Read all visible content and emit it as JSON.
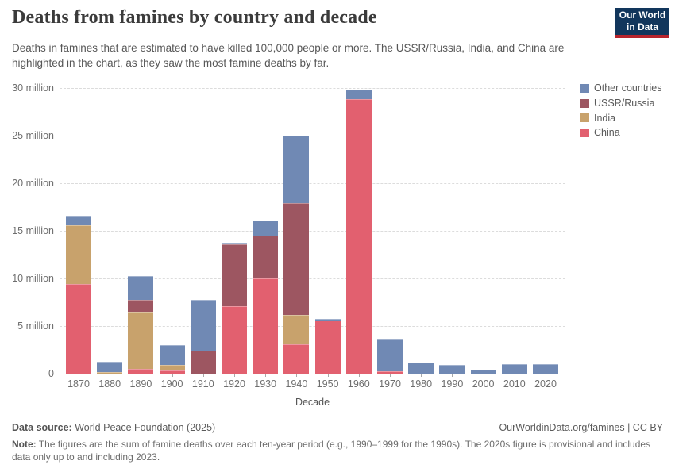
{
  "logo": {
    "line1": "Our World",
    "line2": "in Data",
    "bg_color": "#12365c",
    "stripe_color": "#b8242c"
  },
  "chart_data": {
    "type": "bar",
    "stacked": true,
    "title": "Deaths from famines by country and decade",
    "subtitle": "Deaths in famines that are estimated to have killed 100,000 people or more. The USSR/Russia, India, and China are highlighted in the chart, as they saw the most famine deaths by far.",
    "xlabel": "Decade",
    "ylabel": "",
    "values_unit": "millions of deaths",
    "ylim": [
      0,
      30
    ],
    "grid": "horizontal-dashed",
    "legend_position": "top-right",
    "categories": [
      "1870",
      "1880",
      "1890",
      "1900",
      "1910",
      "1920",
      "1930",
      "1940",
      "1950",
      "1960",
      "1970",
      "1980",
      "1990",
      "2000",
      "2010",
      "2020"
    ],
    "series": [
      {
        "name": "China",
        "color": "#e2606f",
        "values": [
          9.4,
          0,
          0.5,
          0.3,
          0,
          7.1,
          10.0,
          3.1,
          5.55,
          28.8,
          0.25,
          0,
          0,
          0,
          0,
          0
        ]
      },
      {
        "name": "India",
        "color": "#c8a26c",
        "values": [
          6.2,
          0.15,
          6.0,
          0.6,
          0,
          0,
          0,
          3.1,
          0,
          0,
          0,
          0,
          0,
          0,
          0,
          0
        ]
      },
      {
        "name": "USSR/Russia",
        "color": "#9d5661",
        "values": [
          0,
          0,
          1.25,
          0,
          2.45,
          6.5,
          4.5,
          11.7,
          0,
          0,
          0,
          0,
          0,
          0,
          0,
          0
        ]
      },
      {
        "name": "Other countries",
        "color": "#7089b4",
        "values": [
          1.0,
          1.1,
          2.5,
          2.1,
          5.3,
          0.15,
          1.6,
          7.1,
          0.2,
          1.0,
          3.4,
          1.2,
          0.9,
          0.4,
          1.0,
          1.0
        ]
      }
    ],
    "totals": [
      16.6,
      1.25,
      10.25,
      3.0,
      7.75,
      13.75,
      16.1,
      25.0,
      5.75,
      29.8,
      3.65,
      1.2,
      0.9,
      0.4,
      1.0,
      1.0
    ],
    "yticks": [
      {
        "value": 0,
        "label": "0"
      },
      {
        "value": 5,
        "label": "5 million"
      },
      {
        "value": 10,
        "label": "10 million"
      },
      {
        "value": 15,
        "label": "15 million"
      },
      {
        "value": 20,
        "label": "20 million"
      },
      {
        "value": 25,
        "label": "25 million"
      },
      {
        "value": 30,
        "label": "30 million"
      }
    ],
    "legend_items": [
      {
        "label": "Other countries",
        "color": "#7089b4"
      },
      {
        "label": "USSR/Russia",
        "color": "#9d5661"
      },
      {
        "label": "India",
        "color": "#c8a26c"
      },
      {
        "label": "China",
        "color": "#e2606f"
      }
    ]
  },
  "footer": {
    "datasource_label": "Data source:",
    "datasource_value": "World Peace Foundation (2025)",
    "link": "OurWorldinData.org/famines | CC BY",
    "note_label": "Note:",
    "note_value": "The figures are the sum of famine deaths over each ten-year period (e.g., 1990–1999 for the 1990s). The 2020s figure is provisional and includes data only up to and including 2023."
  }
}
